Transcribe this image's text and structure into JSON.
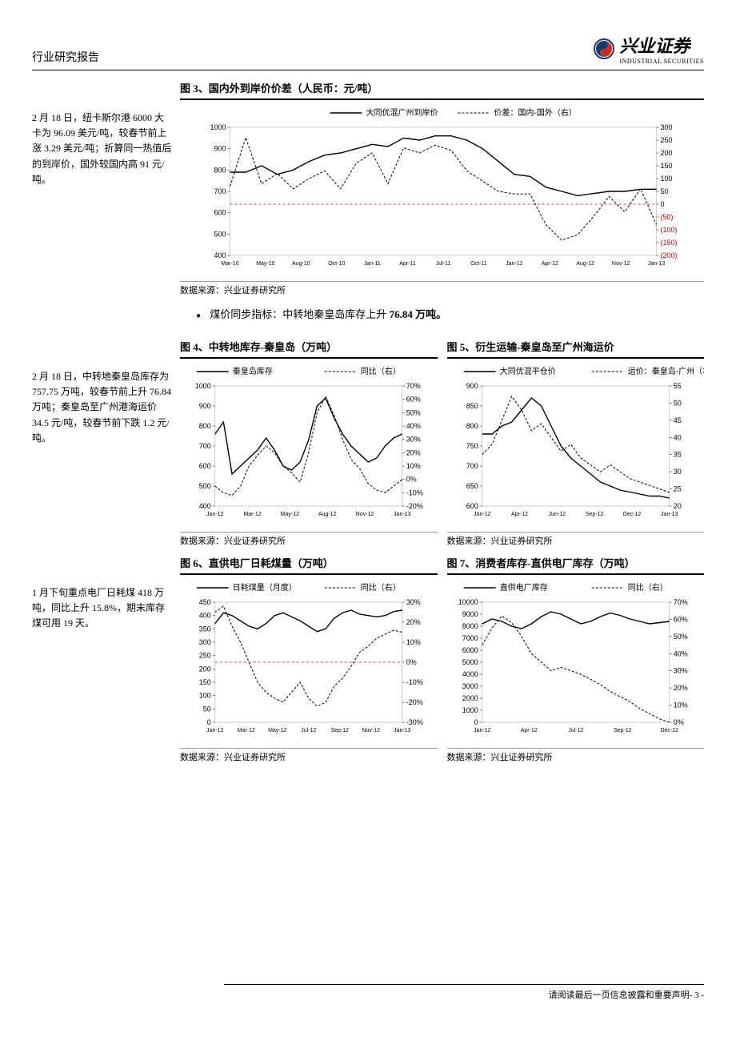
{
  "header": {
    "title": "行业研究报告",
    "logo_main": "兴业证券",
    "logo_sub": "INDUSTRIAL SECURITIES"
  },
  "sidebar": {
    "note1": "2 月 18 日，纽卡斯尔港 6000 大卡为 96.09 美元/吨，较春节前上涨 3.29 美元/吨；折算同一热值后的到岸价，国外较国内高 91 元/吨。",
    "note2": "2 月 18 日，中转地秦皇岛库存为 757.75 万吨，较春节前上升 76.84 万吨；秦皇岛至广州港海运价 34.5 元/吨，较春节前下跌 1.2 元/吨。",
    "note3": "1 月下旬重点电厂日耗煤 418 万吨，同比上升 15.8%，期末库存煤可用 19 天。"
  },
  "bullet": {
    "prefix": "煤价同步指标：中转地秦皇岛库存上升 ",
    "value": "76.84 万吨。"
  },
  "source": "数据来源：兴业证券研究所",
  "footer": "请阅读最后一页信息披露和重要声明- 3 -",
  "chart3": {
    "title": "图 3、国内外到岸价价差（人民币：元/吨）",
    "legend": [
      "大同优混广州到岸价",
      "价差：国内-国外（右）"
    ],
    "y1_ticks": [
      400,
      500,
      600,
      700,
      800,
      900,
      1000
    ],
    "y2_ticks": [
      -200,
      -150,
      -100,
      -50,
      0,
      50,
      100,
      150,
      200,
      250,
      300
    ],
    "y2_neg_labels": [
      "(50)",
      "(100)",
      "(150)",
      "(200)"
    ],
    "x_labels": [
      "Mar-10",
      "May-10",
      "Aug-10",
      "Oct-10",
      "Jan-11",
      "Apr-11",
      "Jul-11",
      "Oct-11",
      "Jan-12",
      "Apr-12",
      "Aug-12",
      "Nov-12",
      "Jan-13"
    ],
    "y1_lim": [
      400,
      1000
    ],
    "y2_lim": [
      -200,
      300
    ],
    "series1": [
      790,
      790,
      820,
      780,
      800,
      840,
      870,
      880,
      900,
      920,
      910,
      950,
      940,
      960,
      960,
      940,
      900,
      840,
      780,
      770,
      720,
      700,
      680,
      690,
      700,
      700,
      710,
      710
    ],
    "series2": [
      70,
      260,
      80,
      120,
      60,
      100,
      130,
      60,
      160,
      200,
      80,
      220,
      200,
      230,
      210,
      130,
      90,
      50,
      40,
      40,
      -80,
      -140,
      -120,
      -50,
      30,
      -30,
      60,
      -80
    ],
    "colors": {
      "line": "#000",
      "zero_line": "#c00",
      "neg_text": "#c00"
    }
  },
  "chart4": {
    "title": "图 4、中转地库存-秦皇岛（万吨）",
    "legend": [
      "秦皇岛库存",
      "同比（右）"
    ],
    "y1_ticks": [
      400,
      500,
      600,
      700,
      800,
      900,
      1000
    ],
    "y2_ticks": [
      "-20%",
      "-10%",
      "0%",
      "10%",
      "20%",
      "30%",
      "40%",
      "50%",
      "60%",
      "70%"
    ],
    "x_labels": [
      "Jan-12",
      "Mar-12",
      "May-12",
      "Aug-12",
      "Nov-12",
      "Jan-13"
    ],
    "y1_lim": [
      400,
      1000
    ],
    "y2_lim": [
      -20,
      70
    ],
    "series1": [
      760,
      820,
      560,
      600,
      640,
      680,
      740,
      680,
      600,
      580,
      620,
      730,
      900,
      940,
      840,
      760,
      700,
      660,
      620,
      640,
      700,
      740,
      760
    ],
    "series2": [
      -5,
      -10,
      -12,
      -5,
      10,
      18,
      25,
      20,
      10,
      5,
      -2,
      20,
      50,
      62,
      48,
      30,
      15,
      8,
      -3,
      -8,
      -10,
      -5,
      0
    ],
    "colors": {
      "line": "#000"
    }
  },
  "chart5": {
    "title": "图 5、衍生运输-秦皇岛至广州海运价",
    "legend": [
      "大同优混平仓价",
      "运价：秦皇岛-广州（右）"
    ],
    "y1_ticks": [
      600,
      650,
      700,
      750,
      800,
      850,
      900
    ],
    "y2_ticks": [
      20,
      25,
      30,
      35,
      40,
      45,
      50,
      55
    ],
    "x_labels": [
      "Jan-12",
      "Apr-12",
      "Jun-12",
      "Sep-12",
      "Dec-12",
      "Jan-13"
    ],
    "y1_lim": [
      600,
      900
    ],
    "y2_lim": [
      20,
      55
    ],
    "series1": [
      780,
      780,
      800,
      810,
      840,
      870,
      850,
      800,
      750,
      720,
      700,
      680,
      660,
      650,
      640,
      635,
      630,
      625,
      625,
      620
    ],
    "series2": [
      35,
      38,
      45,
      52,
      48,
      42,
      44,
      40,
      36,
      38,
      34,
      32,
      30,
      32,
      30,
      28,
      27,
      26,
      25,
      24
    ],
    "colors": {
      "line": "#000"
    }
  },
  "chart6": {
    "title": "图 6、直供电厂日耗煤量（万吨）",
    "legend": [
      "日耗煤量（月度）",
      "同比（右）"
    ],
    "y1_ticks": [
      0,
      50,
      100,
      150,
      200,
      250,
      300,
      350,
      400,
      450
    ],
    "y2_ticks": [
      "-30%",
      "-20%",
      "-10%",
      "0%",
      "10%",
      "20%",
      "30%"
    ],
    "x_labels": [
      "Jan-12",
      "Mar-12",
      "May-12",
      "Jul-12",
      "Sep-12",
      "Nov-12",
      "Jan-13"
    ],
    "y1_lim": [
      0,
      450
    ],
    "y2_lim": [
      -30,
      30
    ],
    "series1": [
      370,
      410,
      400,
      380,
      360,
      350,
      370,
      400,
      410,
      395,
      380,
      360,
      340,
      350,
      390,
      410,
      420,
      405,
      400,
      395,
      400,
      415,
      420
    ],
    "series2": [
      25,
      28,
      18,
      10,
      0,
      -10,
      -15,
      -18,
      -20,
      -15,
      -10,
      -18,
      -22,
      -20,
      -12,
      -8,
      -2,
      5,
      8,
      12,
      14,
      16,
      15
    ],
    "colors": {
      "line": "#000",
      "zero_line": "#c00"
    }
  },
  "chart7": {
    "title": "图 7、消费者库存-直供电厂库存（万吨）",
    "legend": [
      "直供电厂库存",
      "同比（右）"
    ],
    "y1_ticks": [
      0,
      1000,
      2000,
      3000,
      4000,
      5000,
      6000,
      7000,
      8000,
      9000,
      10000
    ],
    "y2_ticks": [
      "0%",
      "10%",
      "20%",
      "30%",
      "40%",
      "50%",
      "60%",
      "70%"
    ],
    "x_labels": [
      "Jan-12",
      "Apr-12",
      "Jul-12",
      "Sep-12",
      "Dec-12"
    ],
    "y1_lim": [
      0,
      10000
    ],
    "y2_lim": [
      0,
      70
    ],
    "series1": [
      8200,
      8600,
      8400,
      8000,
      7800,
      8200,
      8800,
      9200,
      9000,
      8600,
      8200,
      8400,
      8800,
      9100,
      8900,
      8600,
      8400,
      8200,
      8300,
      8400
    ],
    "series2": [
      45,
      55,
      62,
      58,
      50,
      40,
      35,
      30,
      32,
      30,
      28,
      25,
      22,
      18,
      15,
      12,
      8,
      5,
      2,
      0
    ],
    "colors": {
      "line": "#000"
    }
  }
}
